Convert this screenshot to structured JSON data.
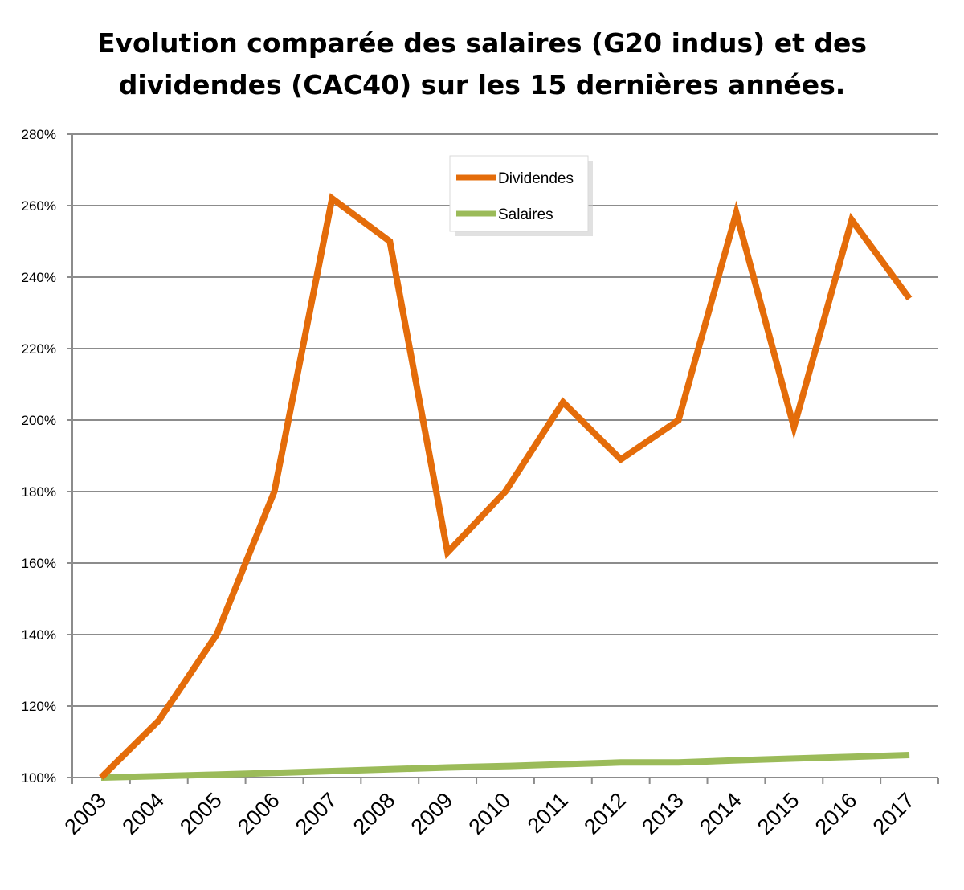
{
  "chart_data": {
    "type": "line",
    "title_line1": "Evolution comparée des salaires  (G20 indus) et des",
    "title_line2": "dividendes (CAC40) sur les 15 dernières années.",
    "categories": [
      "2003",
      "2004",
      "2005",
      "2006",
      "2007",
      "2008",
      "2009",
      "2010",
      "2011",
      "2012",
      "2013",
      "2014",
      "2015",
      "2016",
      "2017"
    ],
    "series": [
      {
        "name": "Dividendes",
        "color": "#e46c0a",
        "values": [
          100,
          116,
          140,
          180,
          262,
          250,
          163,
          180,
          205,
          189,
          200,
          258,
          198,
          256,
          234
        ]
      },
      {
        "name": "Salaires",
        "color": "#9bbb59",
        "values": [
          100,
          100.4,
          100.8,
          101.3,
          101.8,
          102.3,
          102.8,
          103.2,
          103.7,
          104.2,
          104.2,
          104.8,
          105.3,
          105.8,
          106.3
        ]
      }
    ],
    "y_ticks": [
      "100%",
      "120%",
      "140%",
      "160%",
      "180%",
      "200%",
      "220%",
      "240%",
      "260%",
      "280%"
    ],
    "ylim": [
      100,
      280
    ],
    "xlabel": "",
    "ylabel": "",
    "grid": true,
    "legend": "top-center"
  }
}
